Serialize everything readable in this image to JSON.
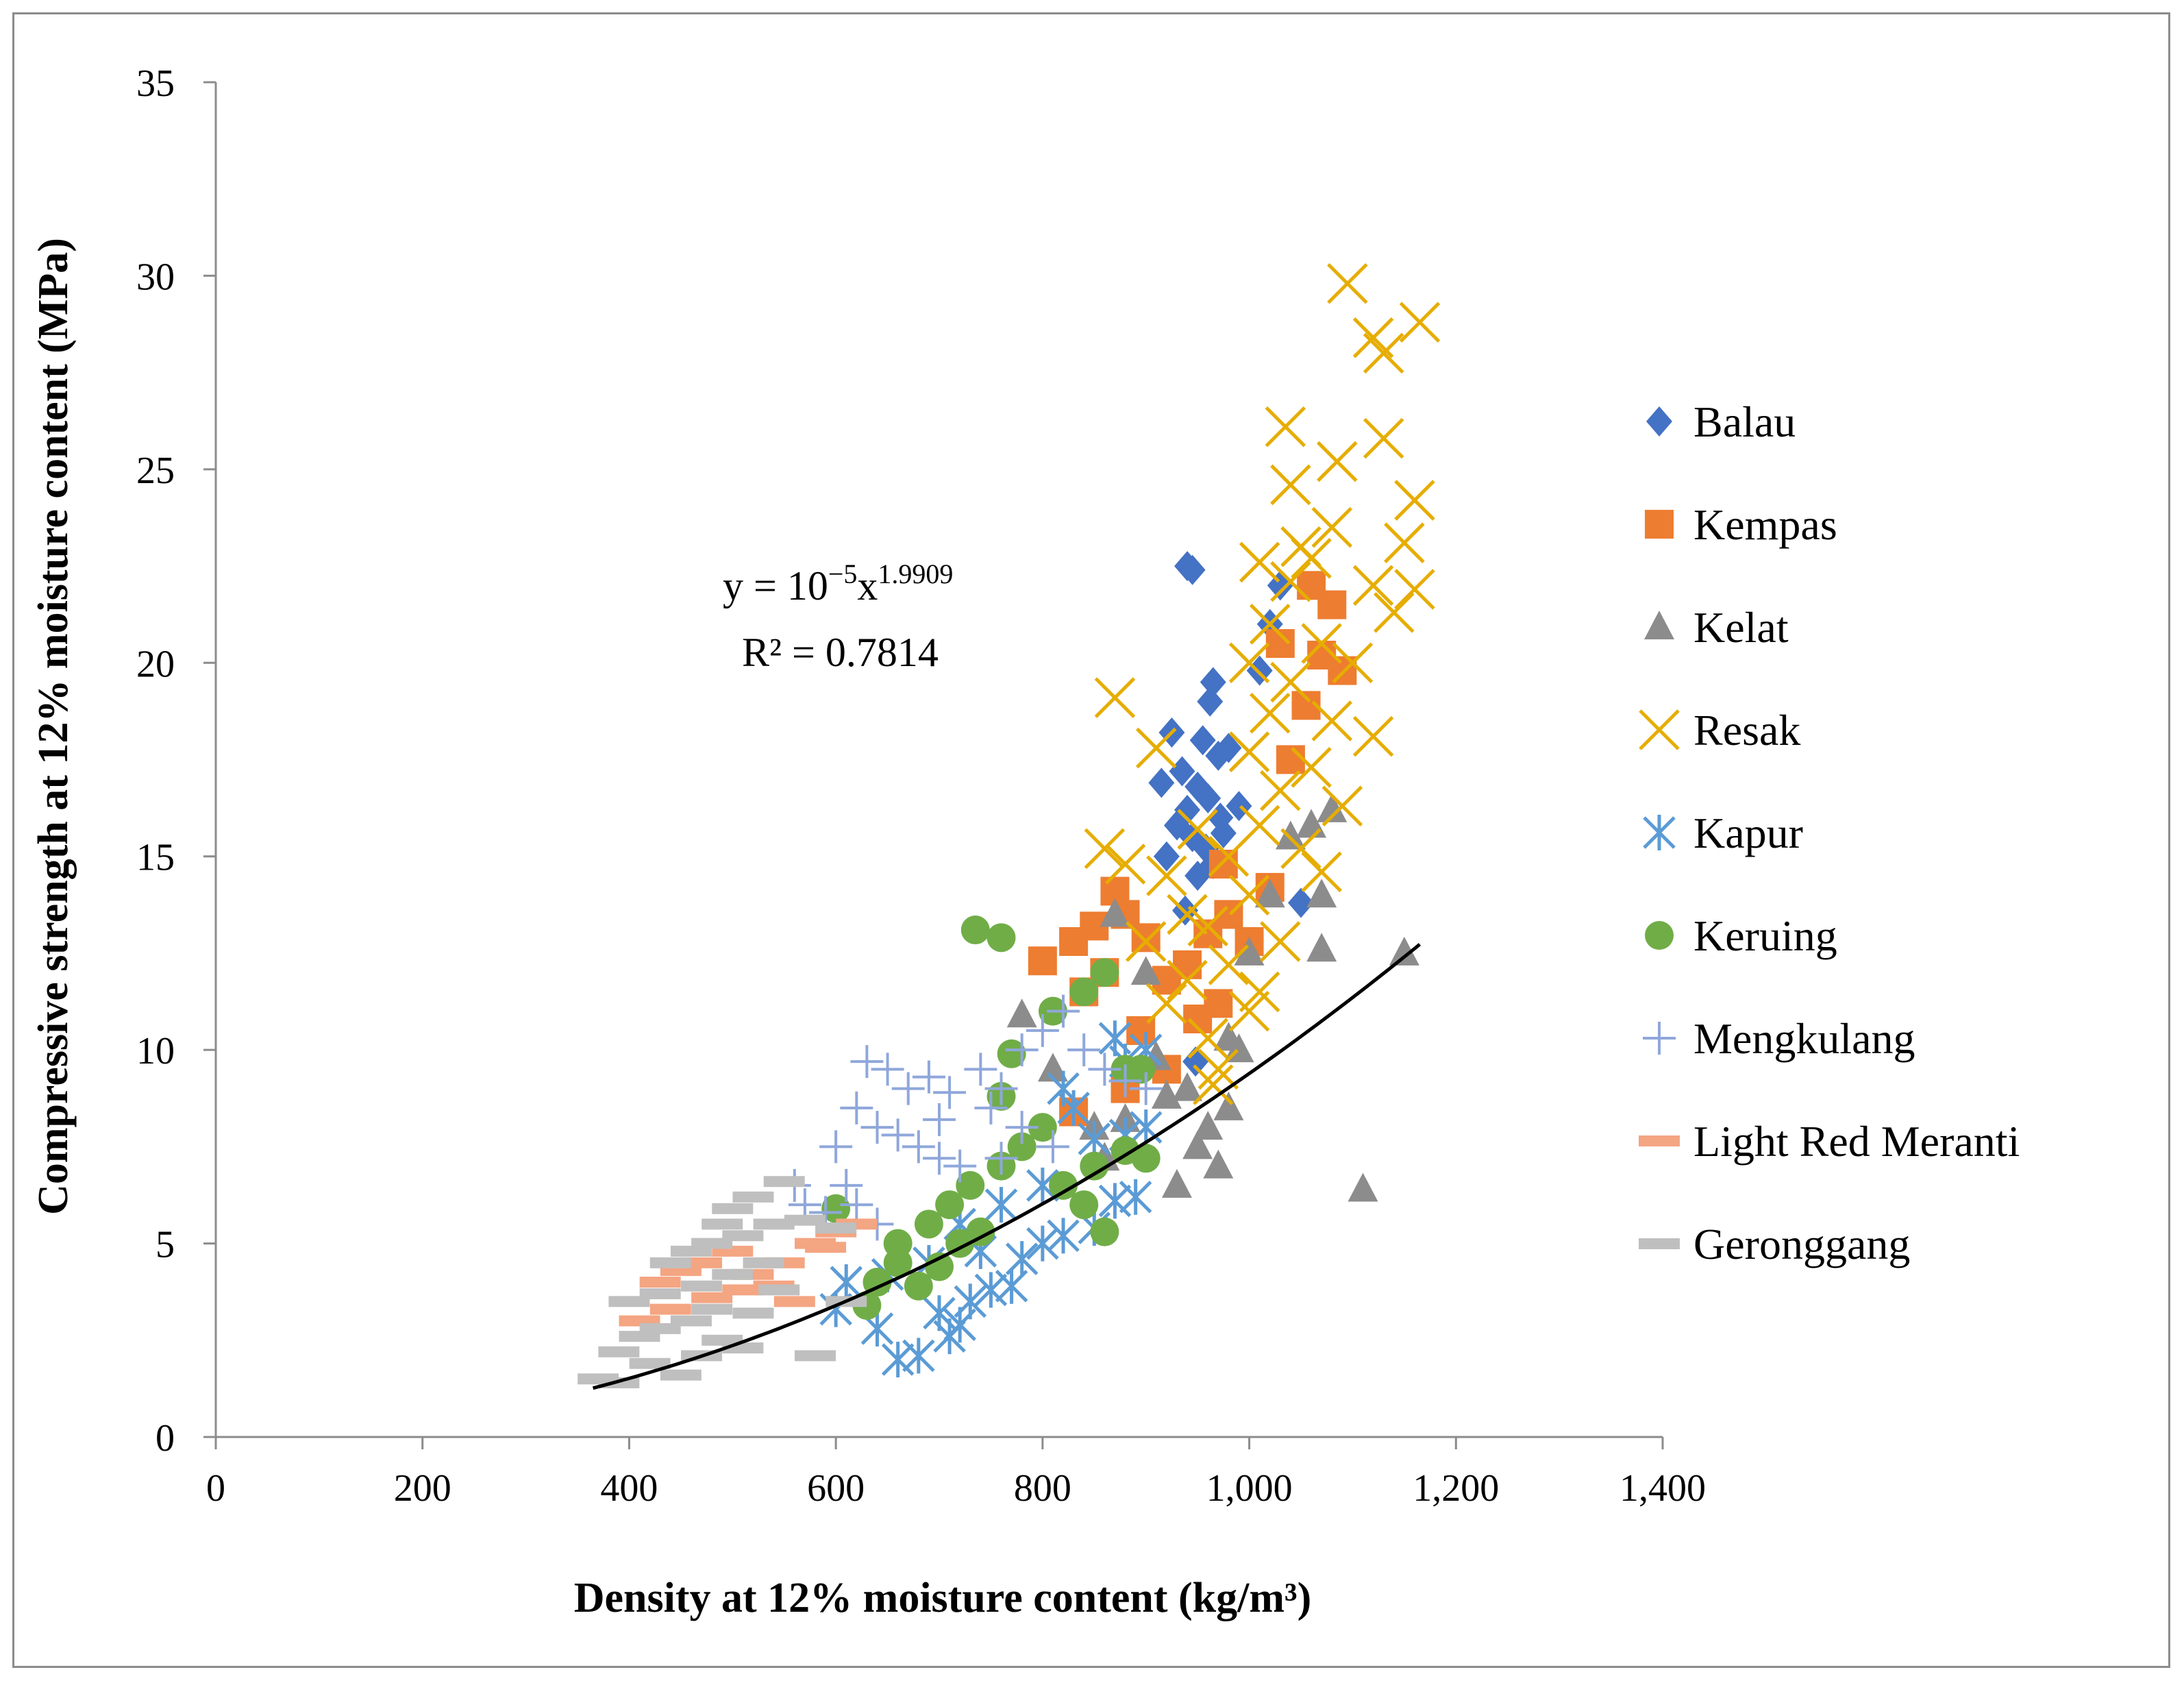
{
  "chart_data": {
    "type": "scatter",
    "xlabel": "Density at 12% moisture content  (kg/m³)",
    "ylabel": "Compressive strength at 12% moisture content (MPa)",
    "xlim": [
      0,
      1400
    ],
    "ylim": [
      0,
      35
    ],
    "x_ticks": [
      "0",
      "200",
      "400",
      "600",
      "800",
      "1,000",
      "1,200",
      "1,400"
    ],
    "y_ticks": [
      "0",
      "5",
      "10",
      "15",
      "20",
      "25",
      "30",
      "35"
    ],
    "grid": false,
    "legend_position": "right",
    "trendline": {
      "type": "power",
      "coefficient": 1e-05,
      "exponent": 1.9909,
      "x_range": [
        365,
        1165
      ],
      "equation_main": "y = 10",
      "equation_exp1": "−5",
      "equation_mid": "x",
      "equation_exp2": "1.9909",
      "r2_label": "R² = 0.7814",
      "color": "#000000"
    },
    "series": [
      {
        "name": "Balau",
        "marker": "diamond",
        "color": "#4472C4",
        "points": [
          [
            940,
            22.5
          ],
          [
            945,
            22.4
          ],
          [
            965,
            19.5
          ],
          [
            962,
            19.0
          ],
          [
            925,
            18.2
          ],
          [
            955,
            18.0
          ],
          [
            970,
            17.6
          ],
          [
            935,
            17.2
          ],
          [
            950,
            16.8
          ],
          [
            960,
            16.5
          ],
          [
            940,
            16.2
          ],
          [
            972,
            16.0
          ],
          [
            930,
            15.8
          ],
          [
            945,
            15.5
          ],
          [
            958,
            15.2
          ],
          [
            920,
            15.0
          ],
          [
            965,
            14.8
          ],
          [
            950,
            14.5
          ],
          [
            990,
            16.3
          ],
          [
            1010,
            19.8
          ],
          [
            1020,
            21.0
          ],
          [
            1030,
            22.0
          ],
          [
            1050,
            13.8
          ],
          [
            975,
            15.6
          ],
          [
            938,
            13.6
          ],
          [
            980,
            17.8
          ],
          [
            915,
            16.9
          ],
          [
            948,
            9.7
          ]
        ]
      },
      {
        "name": "Kempas",
        "marker": "square",
        "color": "#ED7D31",
        "points": [
          [
            800,
            12.3
          ],
          [
            830,
            12.8
          ],
          [
            850,
            13.2
          ],
          [
            870,
            14.1
          ],
          [
            840,
            11.5
          ],
          [
            860,
            12.0
          ],
          [
            880,
            13.5
          ],
          [
            900,
            12.9
          ],
          [
            920,
            11.8
          ],
          [
            940,
            12.2
          ],
          [
            960,
            13.0
          ],
          [
            980,
            13.5
          ],
          [
            1000,
            12.8
          ],
          [
            1020,
            14.2
          ],
          [
            1040,
            17.5
          ],
          [
            1055,
            18.9
          ],
          [
            1070,
            20.2
          ],
          [
            1080,
            21.5
          ],
          [
            1090,
            19.8
          ],
          [
            1060,
            22.0
          ],
          [
            1030,
            20.5
          ],
          [
            950,
            10.8
          ],
          [
            970,
            11.2
          ],
          [
            830,
            8.4
          ],
          [
            880,
            9.0
          ],
          [
            920,
            9.5
          ],
          [
            895,
            10.5
          ],
          [
            975,
            14.8
          ]
        ]
      },
      {
        "name": "Kelat",
        "marker": "triangle",
        "color": "#8C8C8C",
        "points": [
          [
            780,
            10.9
          ],
          [
            810,
            9.5
          ],
          [
            850,
            8.0
          ],
          [
            870,
            13.5
          ],
          [
            880,
            8.2
          ],
          [
            900,
            12.0
          ],
          [
            920,
            8.8
          ],
          [
            930,
            6.5
          ],
          [
            950,
            7.5
          ],
          [
            960,
            8.0
          ],
          [
            970,
            7.0
          ],
          [
            980,
            8.5
          ],
          [
            990,
            10.0
          ],
          [
            1000,
            12.5
          ],
          [
            1020,
            14.0
          ],
          [
            1040,
            15.5
          ],
          [
            1060,
            15.8
          ],
          [
            1070,
            14.0
          ],
          [
            1080,
            16.2
          ],
          [
            1070,
            12.6
          ],
          [
            1150,
            12.5
          ],
          [
            1110,
            6.4
          ],
          [
            980,
            10.3
          ],
          [
            940,
            9.0
          ],
          [
            910,
            9.8
          ],
          [
            860,
            7.2
          ]
        ]
      },
      {
        "name": "Resak",
        "marker": "x",
        "color": "#E6AD00",
        "points": [
          [
            870,
            19.1
          ],
          [
            1095,
            29.8
          ],
          [
            1120,
            28.4
          ],
          [
            1130,
            28.0
          ],
          [
            1165,
            28.8
          ],
          [
            1035,
            26.1
          ],
          [
            1085,
            25.2
          ],
          [
            1130,
            25.8
          ],
          [
            1040,
            24.6
          ],
          [
            1160,
            24.2
          ],
          [
            1080,
            23.5
          ],
          [
            1150,
            23.1
          ],
          [
            1050,
            23.0
          ],
          [
            1060,
            22.7
          ],
          [
            1040,
            22.1
          ],
          [
            1010,
            22.6
          ],
          [
            1120,
            22.0
          ],
          [
            1160,
            21.9
          ],
          [
            1140,
            21.3
          ],
          [
            1020,
            21.0
          ],
          [
            1070,
            20.5
          ],
          [
            1000,
            20.0
          ],
          [
            1100,
            20.0
          ],
          [
            1040,
            19.5
          ],
          [
            1020,
            18.7
          ],
          [
            1080,
            18.5
          ],
          [
            1120,
            18.1
          ],
          [
            1000,
            17.7
          ],
          [
            910,
            17.8
          ],
          [
            1060,
            17.3
          ],
          [
            1030,
            16.7
          ],
          [
            1090,
            16.3
          ],
          [
            1010,
            15.8
          ],
          [
            950,
            15.7
          ],
          [
            1050,
            15.2
          ],
          [
            980,
            15.0
          ],
          [
            860,
            15.2
          ],
          [
            880,
            14.8
          ],
          [
            1070,
            14.6
          ],
          [
            920,
            14.5
          ],
          [
            1000,
            14.0
          ],
          [
            940,
            13.5
          ],
          [
            960,
            13.2
          ],
          [
            1030,
            12.8
          ],
          [
            900,
            12.8
          ],
          [
            980,
            12.2
          ],
          [
            940,
            11.8
          ],
          [
            1010,
            11.5
          ],
          [
            1000,
            11.0
          ],
          [
            920,
            11.2
          ],
          [
            960,
            10.3
          ],
          [
            970,
            9.5
          ],
          [
            965,
            9.1
          ]
        ]
      },
      {
        "name": "Kapur",
        "marker": "asterisk",
        "color": "#5B9BD5",
        "points": [
          [
            660,
            2.0
          ],
          [
            680,
            2.1
          ],
          [
            710,
            2.6
          ],
          [
            720,
            2.9
          ],
          [
            640,
            2.8
          ],
          [
            700,
            3.2
          ],
          [
            730,
            3.5
          ],
          [
            750,
            3.8
          ],
          [
            770,
            3.9
          ],
          [
            600,
            3.3
          ],
          [
            610,
            4.0
          ],
          [
            650,
            4.2
          ],
          [
            690,
            4.5
          ],
          [
            740,
            4.8
          ],
          [
            780,
            4.6
          ],
          [
            800,
            5.0
          ],
          [
            820,
            5.2
          ],
          [
            850,
            5.4
          ],
          [
            870,
            6.1
          ],
          [
            890,
            6.2
          ],
          [
            900,
            8.0
          ],
          [
            880,
            7.8
          ],
          [
            850,
            7.7
          ],
          [
            830,
            8.5
          ],
          [
            800,
            6.5
          ],
          [
            760,
            6.0
          ],
          [
            720,
            5.5
          ],
          [
            880,
            9.7
          ],
          [
            900,
            10.0
          ],
          [
            870,
            10.3
          ],
          [
            820,
            9.0
          ]
        ]
      },
      {
        "name": "Keruing",
        "marker": "circle",
        "color": "#70AD47",
        "points": [
          [
            735,
            13.1
          ],
          [
            760,
            12.9
          ],
          [
            600,
            5.9
          ],
          [
            630,
            3.4
          ],
          [
            640,
            4.0
          ],
          [
            660,
            4.5
          ],
          [
            680,
            3.9
          ],
          [
            700,
            4.4
          ],
          [
            720,
            5.0
          ],
          [
            740,
            5.3
          ],
          [
            660,
            5.0
          ],
          [
            690,
            5.5
          ],
          [
            710,
            6.0
          ],
          [
            730,
            6.5
          ],
          [
            760,
            7.0
          ],
          [
            780,
            7.5
          ],
          [
            800,
            8.0
          ],
          [
            770,
            9.9
          ],
          [
            760,
            8.8
          ],
          [
            820,
            6.5
          ],
          [
            840,
            6.0
          ],
          [
            860,
            5.3
          ],
          [
            810,
            11.0
          ],
          [
            840,
            11.5
          ],
          [
            860,
            12.0
          ],
          [
            880,
            9.5
          ],
          [
            895,
            9.5
          ],
          [
            880,
            7.4
          ],
          [
            900,
            7.2
          ],
          [
            850,
            7.0
          ]
        ]
      },
      {
        "name": "Mengkulang",
        "marker": "plus",
        "color": "#8FA7DB",
        "points": [
          [
            630,
            9.7
          ],
          [
            650,
            9.5
          ],
          [
            670,
            9.0
          ],
          [
            690,
            9.3
          ],
          [
            710,
            8.9
          ],
          [
            740,
            9.5
          ],
          [
            760,
            9.0
          ],
          [
            620,
            8.5
          ],
          [
            640,
            8.0
          ],
          [
            660,
            7.8
          ],
          [
            680,
            7.5
          ],
          [
            700,
            7.2
          ],
          [
            720,
            7.0
          ],
          [
            600,
            7.5
          ],
          [
            610,
            6.5
          ],
          [
            620,
            6.0
          ],
          [
            640,
            5.5
          ],
          [
            560,
            6.5
          ],
          [
            570,
            6.0
          ],
          [
            590,
            5.8
          ],
          [
            700,
            8.2
          ],
          [
            750,
            8.5
          ],
          [
            780,
            10.0
          ],
          [
            800,
            10.5
          ],
          [
            820,
            11.0
          ],
          [
            840,
            10.0
          ],
          [
            860,
            9.5
          ],
          [
            880,
            9.2
          ],
          [
            900,
            9.0
          ],
          [
            760,
            7.2
          ],
          [
            780,
            8.0
          ],
          [
            810,
            7.5
          ]
        ]
      },
      {
        "name": "Light Red Meranti",
        "marker": "dash",
        "color": "#F4A582",
        "points": [
          [
            430,
            4.0
          ],
          [
            450,
            4.3
          ],
          [
            470,
            4.5
          ],
          [
            500,
            4.8
          ],
          [
            520,
            4.2
          ],
          [
            540,
            3.9
          ],
          [
            560,
            3.5
          ],
          [
            580,
            5.0
          ],
          [
            600,
            5.3
          ],
          [
            620,
            5.5
          ],
          [
            410,
            3.0
          ],
          [
            440,
            3.3
          ],
          [
            480,
            3.6
          ],
          [
            510,
            3.8
          ],
          [
            550,
            4.5
          ],
          [
            590,
            4.9
          ]
        ]
      },
      {
        "name": "Geronggang",
        "marker": "dash",
        "color": "#BFBFBF",
        "points": [
          [
            370,
            1.5
          ],
          [
            390,
            1.4
          ],
          [
            420,
            1.9
          ],
          [
            450,
            1.6
          ],
          [
            470,
            2.1
          ],
          [
            490,
            2.5
          ],
          [
            510,
            2.3
          ],
          [
            390,
            2.2
          ],
          [
            410,
            2.6
          ],
          [
            430,
            2.8
          ],
          [
            460,
            3.0
          ],
          [
            480,
            3.3
          ],
          [
            400,
            3.5
          ],
          [
            430,
            3.7
          ],
          [
            470,
            3.9
          ],
          [
            500,
            4.2
          ],
          [
            530,
            4.5
          ],
          [
            460,
            4.8
          ],
          [
            480,
            5.0
          ],
          [
            510,
            5.2
          ],
          [
            540,
            5.5
          ],
          [
            570,
            5.6
          ],
          [
            500,
            5.9
          ],
          [
            520,
            6.2
          ],
          [
            550,
            6.6
          ],
          [
            580,
            2.1
          ],
          [
            610,
            3.5
          ],
          [
            600,
            5.4
          ],
          [
            490,
            5.5
          ],
          [
            440,
            4.5
          ],
          [
            520,
            3.2
          ],
          [
            545,
            3.8
          ]
        ]
      }
    ]
  }
}
